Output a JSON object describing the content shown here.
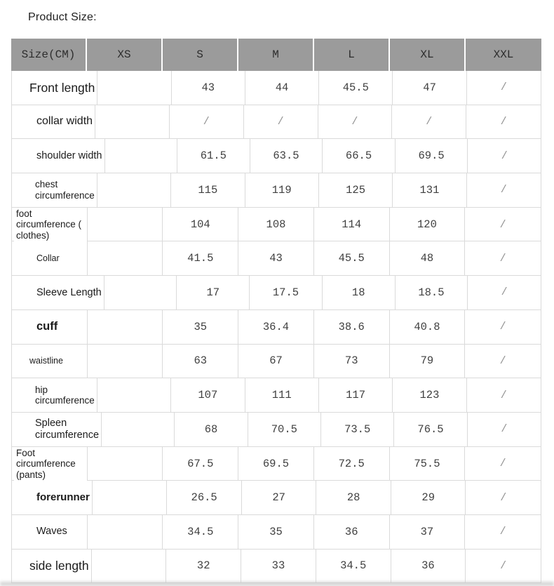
{
  "page": {
    "title": "Product Size:"
  },
  "size_table": {
    "columns": [
      "Size(CM)",
      "XS",
      "S",
      "M",
      "L",
      "XL",
      "XXL"
    ],
    "rows": [
      {
        "label": "Front length",
        "values": [
          "",
          "43",
          "44",
          "45.5",
          "47",
          "/"
        ]
      },
      {
        "label": "collar width",
        "values": [
          "",
          "/",
          "/",
          "/",
          "/",
          "/"
        ]
      },
      {
        "label": "shoulder width",
        "values": [
          "",
          "61.5",
          "63.5",
          "66.5",
          "69.5",
          "/"
        ]
      },
      {
        "label": "chest\ncircumference",
        "values": [
          "",
          "115",
          "119",
          "125",
          "131",
          "/"
        ]
      },
      {
        "label": "foot circumference (\nclothes)",
        "values": [
          "",
          "104",
          "108",
          "114",
          "120",
          "/"
        ]
      },
      {
        "label": "Collar",
        "values": [
          "",
          "41.5",
          "43",
          "45.5",
          "48",
          "/"
        ]
      },
      {
        "label": "Sleeve Length",
        "values": [
          "",
          "17",
          "17.5",
          "18",
          "18.5",
          "/"
        ]
      },
      {
        "label": "cuff",
        "values": [
          "",
          "35",
          "36.4",
          "38.6",
          "40.8",
          "/"
        ]
      },
      {
        "label": "waistline",
        "values": [
          "",
          "63",
          "67",
          "73",
          "79",
          "/"
        ]
      },
      {
        "label": "hip\ncircumference",
        "values": [
          "",
          "107",
          "111",
          "117",
          "123",
          "/"
        ]
      },
      {
        "label": "Spleen\ncircumference",
        "values": [
          "",
          "68",
          "70.5",
          "73.5",
          "76.5",
          "/"
        ]
      },
      {
        "label": "Foot circumference\n(pants)",
        "values": [
          "",
          "67.5",
          "69.5",
          "72.5",
          "75.5",
          "/"
        ]
      },
      {
        "label": "forerunner",
        "values": [
          "",
          "26.5",
          "27",
          "28",
          "29",
          "/"
        ]
      },
      {
        "label": "Waves",
        "values": [
          "",
          "34.5",
          "35",
          "36",
          "37",
          "/"
        ]
      },
      {
        "label": "side length",
        "values": [
          "",
          "32",
          "33",
          "34.5",
          "36",
          "/"
        ]
      }
    ],
    "colors": {
      "header_bg": "#9b9b9b",
      "grid_line": "#dadada",
      "value_text": "#404040",
      "slash_text": "#929292"
    }
  }
}
